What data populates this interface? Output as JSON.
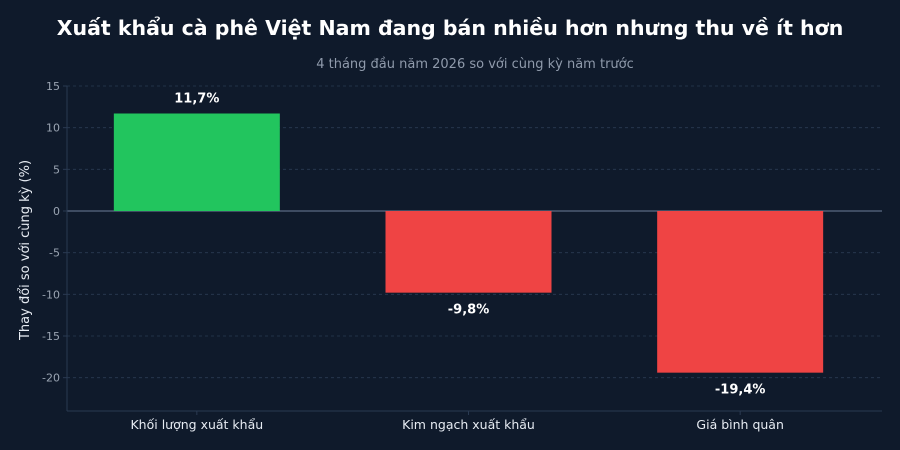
{
  "chart_data": {
    "type": "bar",
    "title": "Xuất khẩu cà phê Việt Nam đang bán nhiều hơn nhưng thu về ít hơn",
    "subtitle": "4 tháng đầu năm 2026 so với cùng kỳ năm trước",
    "xlabel": "",
    "ylabel": "Thay đổi so với cùng kỳ (%)",
    "categories": [
      "Khối lượng xuất khẩu",
      "Kim ngạch xuất khẩu",
      "Giá bình quân"
    ],
    "values": [
      11.7,
      -9.8,
      -19.4
    ],
    "value_labels": [
      "11,7%",
      "-9,8%",
      "-19,4%"
    ],
    "ylim": [
      -24,
      15
    ],
    "yticks": [
      15,
      10,
      5,
      0,
      -5,
      -10,
      -15,
      -20
    ],
    "grid": true,
    "colors": {
      "positive": "#22c55e",
      "negative": "#ef4444",
      "background": "#0f1a2b",
      "grid": "#2a3a52",
      "zero_line": "#5b6b82"
    }
  }
}
